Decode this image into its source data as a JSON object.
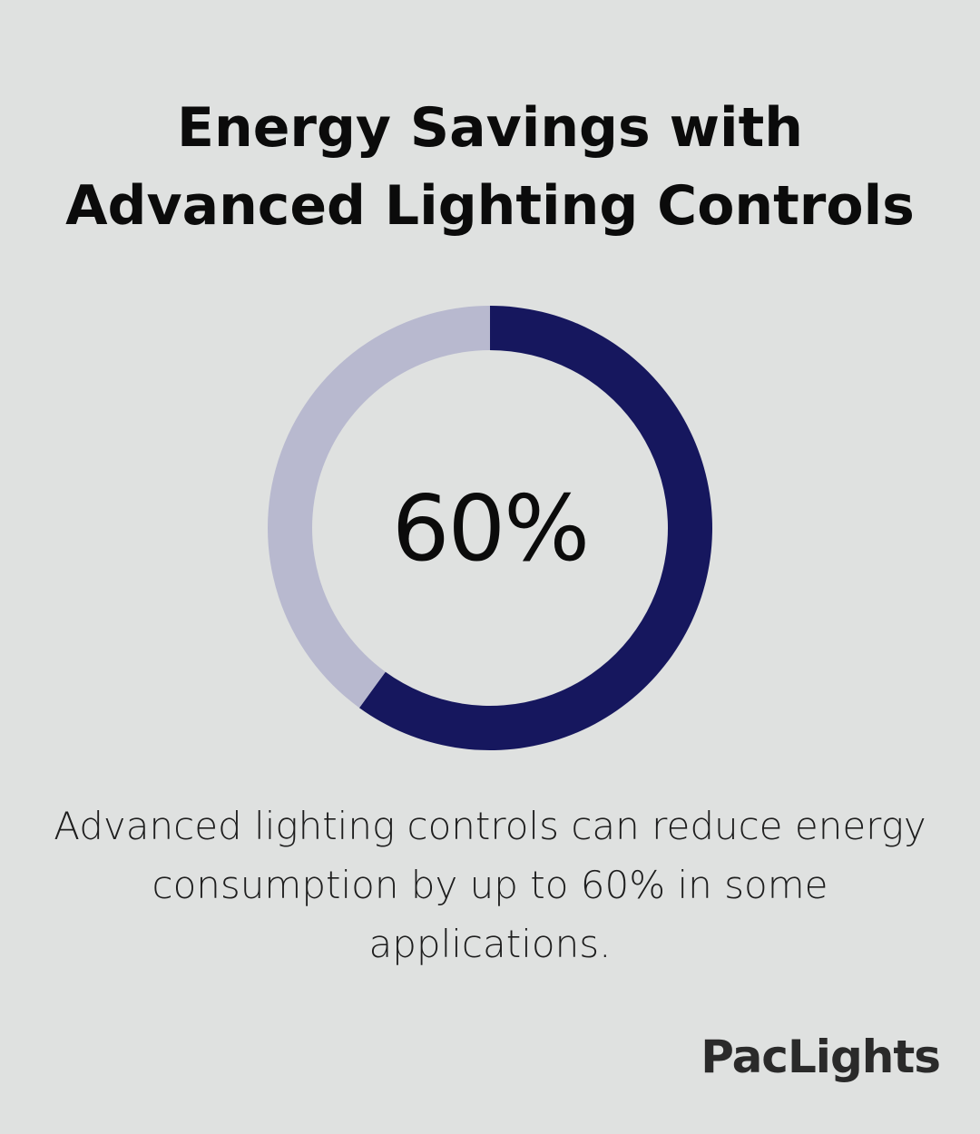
{
  "title_lines": [
    "Energy Savings with",
    "Advanced Lighting Controls"
  ],
  "chart_data": {
    "type": "pie",
    "variant": "donut",
    "values": [
      60,
      40
    ],
    "center_label": "60%",
    "colors": [
      "#16175e",
      "#b8b9cf"
    ],
    "start": "top",
    "direction": "clockwise"
  },
  "caption": "Advanced lighting controls can reduce energy consumption by up to 60% in some applications.",
  "brand": "PacLights",
  "colors": {
    "background": "#dfe1e0",
    "accent": "#16175e",
    "track": "#b8b9cf"
  }
}
